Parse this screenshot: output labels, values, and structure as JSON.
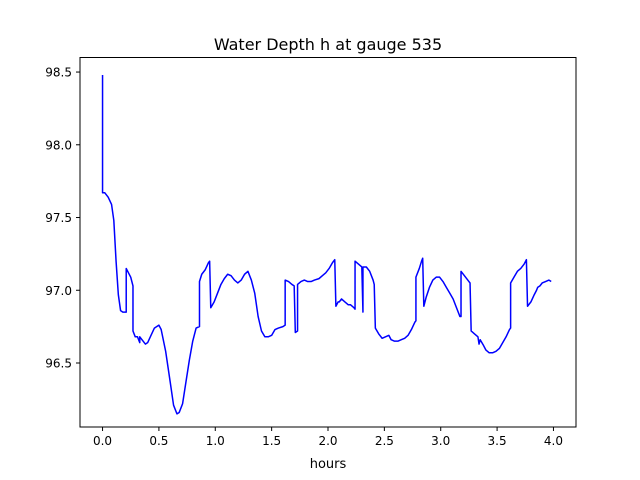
{
  "chart_data": {
    "type": "line",
    "title": "Water Depth h at gauge 535",
    "xlabel": "hours",
    "ylabel": "",
    "xlim": [
      -0.2,
      4.2
    ],
    "ylim": [
      96.06,
      98.6
    ],
    "xticks": [
      0.0,
      0.5,
      1.0,
      1.5,
      2.0,
      2.5,
      3.0,
      3.5,
      4.0
    ],
    "xtick_labels": [
      "0.0",
      "0.5",
      "1.0",
      "1.5",
      "2.0",
      "2.5",
      "3.0",
      "3.5",
      "4.0"
    ],
    "yticks": [
      96.5,
      97.0,
      97.5,
      98.0,
      98.5
    ],
    "ytick_labels": [
      "96.5",
      "97.0",
      "97.5",
      "98.0",
      "98.5"
    ],
    "grid": false,
    "legend": "none",
    "series": [
      {
        "color": "#0000ff",
        "points": [
          [
            0.0,
            98.48
          ],
          [
            0.0,
            97.67
          ],
          [
            0.02,
            97.67
          ],
          [
            0.05,
            97.64
          ],
          [
            0.08,
            97.59
          ],
          [
            0.1,
            97.48
          ],
          [
            0.12,
            97.2
          ],
          [
            0.14,
            96.97
          ],
          [
            0.16,
            96.86
          ],
          [
            0.18,
            96.85
          ],
          [
            0.2,
            96.85
          ],
          [
            0.21,
            96.85
          ],
          [
            0.21,
            97.15
          ],
          [
            0.25,
            97.09
          ],
          [
            0.27,
            97.03
          ],
          [
            0.27,
            96.72
          ],
          [
            0.29,
            96.68
          ],
          [
            0.31,
            96.68
          ],
          [
            0.33,
            96.64
          ],
          [
            0.33,
            96.68
          ],
          [
            0.36,
            96.65
          ],
          [
            0.38,
            96.63
          ],
          [
            0.4,
            96.64
          ],
          [
            0.43,
            96.69
          ],
          [
            0.46,
            96.74
          ],
          [
            0.5,
            96.76
          ],
          [
            0.52,
            96.73
          ],
          [
            0.56,
            96.58
          ],
          [
            0.6,
            96.37
          ],
          [
            0.63,
            96.21
          ],
          [
            0.66,
            96.15
          ],
          [
            0.68,
            96.16
          ],
          [
            0.71,
            96.22
          ],
          [
            0.74,
            96.37
          ],
          [
            0.77,
            96.52
          ],
          [
            0.8,
            96.65
          ],
          [
            0.83,
            96.74
          ],
          [
            0.86,
            96.75
          ],
          [
            0.86,
            97.06
          ],
          [
            0.88,
            97.11
          ],
          [
            0.91,
            97.14
          ],
          [
            0.94,
            97.19
          ],
          [
            0.95,
            97.2
          ],
          [
            0.96,
            96.88
          ],
          [
            0.99,
            96.92
          ],
          [
            1.02,
            96.98
          ],
          [
            1.05,
            97.04
          ],
          [
            1.08,
            97.08
          ],
          [
            1.11,
            97.11
          ],
          [
            1.14,
            97.1
          ],
          [
            1.17,
            97.07
          ],
          [
            1.2,
            97.05
          ],
          [
            1.23,
            97.07
          ],
          [
            1.26,
            97.11
          ],
          [
            1.29,
            97.13
          ],
          [
            1.32,
            97.07
          ],
          [
            1.35,
            96.98
          ],
          [
            1.38,
            96.82
          ],
          [
            1.41,
            96.72
          ],
          [
            1.44,
            96.68
          ],
          [
            1.47,
            96.68
          ],
          [
            1.5,
            96.69
          ],
          [
            1.53,
            96.73
          ],
          [
            1.56,
            96.74
          ],
          [
            1.6,
            96.75
          ],
          [
            1.62,
            96.76
          ],
          [
            1.62,
            97.07
          ],
          [
            1.65,
            97.06
          ],
          [
            1.68,
            97.04
          ],
          [
            1.7,
            97.03
          ],
          [
            1.71,
            96.71
          ],
          [
            1.73,
            96.72
          ],
          [
            1.73,
            97.04
          ],
          [
            1.76,
            97.06
          ],
          [
            1.79,
            97.07
          ],
          [
            1.82,
            97.06
          ],
          [
            1.85,
            97.06
          ],
          [
            1.88,
            97.07
          ],
          [
            1.92,
            97.08
          ],
          [
            1.95,
            97.1
          ],
          [
            1.98,
            97.12
          ],
          [
            2.01,
            97.15
          ],
          [
            2.04,
            97.19
          ],
          [
            2.06,
            97.21
          ],
          [
            2.07,
            96.89
          ],
          [
            2.09,
            96.92
          ],
          [
            2.1,
            96.92
          ],
          [
            2.12,
            96.94
          ],
          [
            2.15,
            96.92
          ],
          [
            2.18,
            96.9
          ],
          [
            2.2,
            96.9
          ],
          [
            2.23,
            96.88
          ],
          [
            2.24,
            96.87
          ],
          [
            2.24,
            97.2
          ],
          [
            2.27,
            97.18
          ],
          [
            2.3,
            97.16
          ],
          [
            2.31,
            96.85
          ],
          [
            2.31,
            97.16
          ],
          [
            2.34,
            97.16
          ],
          [
            2.37,
            97.13
          ],
          [
            2.4,
            97.07
          ],
          [
            2.41,
            97.04
          ],
          [
            2.42,
            96.74
          ],
          [
            2.45,
            96.7
          ],
          [
            2.48,
            96.67
          ],
          [
            2.51,
            96.68
          ],
          [
            2.54,
            96.69
          ],
          [
            2.56,
            96.66
          ],
          [
            2.59,
            96.65
          ],
          [
            2.62,
            96.65
          ],
          [
            2.65,
            96.66
          ],
          [
            2.68,
            96.67
          ],
          [
            2.71,
            96.69
          ],
          [
            2.74,
            96.73
          ],
          [
            2.77,
            96.78
          ],
          [
            2.78,
            96.79
          ],
          [
            2.78,
            97.09
          ],
          [
            2.81,
            97.15
          ],
          [
            2.83,
            97.2
          ],
          [
            2.84,
            97.22
          ],
          [
            2.85,
            96.89
          ],
          [
            2.87,
            96.95
          ],
          [
            2.9,
            97.02
          ],
          [
            2.93,
            97.07
          ],
          [
            2.96,
            97.09
          ],
          [
            2.99,
            97.09
          ],
          [
            3.02,
            97.06
          ],
          [
            3.05,
            97.02
          ],
          [
            3.08,
            96.98
          ],
          [
            3.11,
            96.94
          ],
          [
            3.14,
            96.88
          ],
          [
            3.17,
            96.82
          ],
          [
            3.18,
            96.82
          ],
          [
            3.18,
            97.13
          ],
          [
            3.21,
            97.1
          ],
          [
            3.24,
            97.07
          ],
          [
            3.26,
            97.05
          ],
          [
            3.27,
            96.72
          ],
          [
            3.3,
            96.7
          ],
          [
            3.33,
            96.68
          ],
          [
            3.34,
            96.63
          ],
          [
            3.35,
            96.66
          ],
          [
            3.38,
            96.62
          ],
          [
            3.4,
            96.59
          ],
          [
            3.43,
            96.57
          ],
          [
            3.46,
            96.57
          ],
          [
            3.49,
            96.58
          ],
          [
            3.52,
            96.6
          ],
          [
            3.55,
            96.64
          ],
          [
            3.58,
            96.68
          ],
          [
            3.61,
            96.73
          ],
          [
            3.62,
            96.74
          ],
          [
            3.62,
            97.05
          ],
          [
            3.65,
            97.09
          ],
          [
            3.68,
            97.13
          ],
          [
            3.71,
            97.15
          ],
          [
            3.74,
            97.18
          ],
          [
            3.76,
            97.21
          ],
          [
            3.77,
            96.89
          ],
          [
            3.8,
            96.92
          ],
          [
            3.83,
            96.97
          ],
          [
            3.85,
            97.0
          ],
          [
            3.86,
            97.02
          ],
          [
            3.88,
            97.03
          ],
          [
            3.9,
            97.05
          ],
          [
            3.93,
            97.06
          ],
          [
            3.96,
            97.07
          ],
          [
            3.98,
            97.06
          ]
        ]
      }
    ]
  }
}
